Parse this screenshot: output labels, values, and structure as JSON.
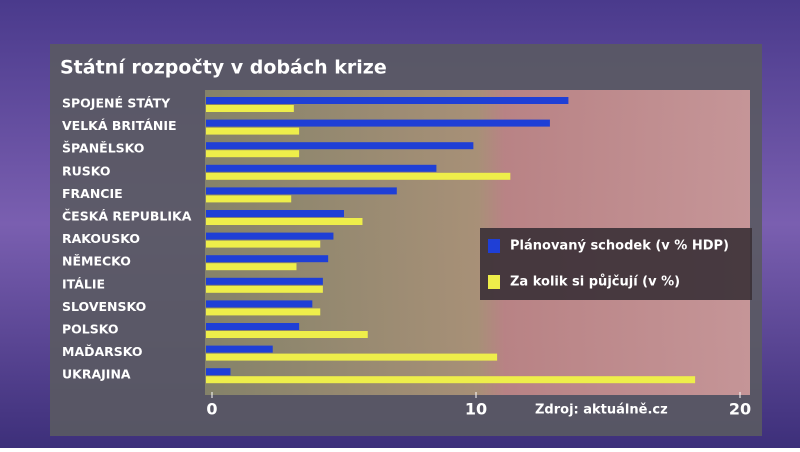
{
  "chart_data": {
    "type": "bar",
    "title": "Státní rozpočty v dobách krize",
    "categories": [
      "SPOJENÉ STÁTY",
      "VELKÁ BRITÁNIE",
      "ŠPANĚLSKO",
      "RUSKO",
      "FRANCIE",
      "ČESKÁ REPUBLIKA",
      "RAKOUSKO",
      "NĚMECKO",
      "ITÁLIE",
      "SLOVENSKO",
      "POLSKO",
      "MAĎARSKO",
      "UKRAJINA"
    ],
    "series": [
      {
        "name": "Plánovaný schodek (v % HDP)",
        "color": "#1f3fd6",
        "values": [
          13.5,
          12.8,
          9.9,
          8.5,
          7.0,
          5.0,
          4.6,
          4.4,
          4.2,
          3.8,
          3.3,
          2.3,
          0.7
        ]
      },
      {
        "name": "Za kolik si půjčují (v %)",
        "color": "#eeee4a",
        "values": [
          3.1,
          3.3,
          3.3,
          11.3,
          3.0,
          5.7,
          4.1,
          3.2,
          4.2,
          4.1,
          5.9,
          10.8,
          18.3
        ]
      }
    ],
    "xlim": [
      0,
      20
    ],
    "xticks": [
      0,
      10,
      20
    ],
    "annotation": "Zdroj: aktuálně.cz"
  }
}
